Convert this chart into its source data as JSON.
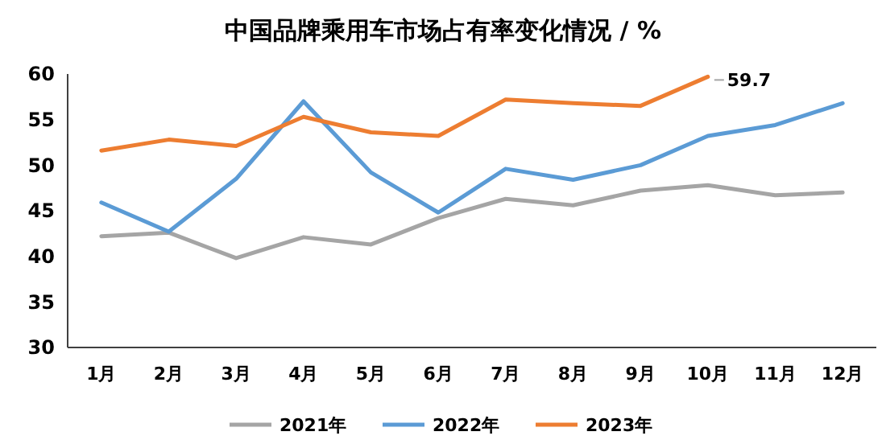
{
  "chart_data": {
    "type": "line",
    "title": "中国品牌乘用车市场占有率变化情况 / %",
    "categories": [
      "1月",
      "2月",
      "3月",
      "4月",
      "5月",
      "6月",
      "7月",
      "8月",
      "9月",
      "10月",
      "11月",
      "12月"
    ],
    "series": [
      {
        "name": "2021年",
        "color": "#a5a5a5",
        "values": [
          42.2,
          42.6,
          39.8,
          42.1,
          41.3,
          44.2,
          46.3,
          45.6,
          47.2,
          47.8,
          46.7,
          47.0
        ]
      },
      {
        "name": "2022年",
        "color": "#5b9bd5",
        "values": [
          45.9,
          42.7,
          48.5,
          57.0,
          49.2,
          44.8,
          49.6,
          48.4,
          50.0,
          53.2,
          54.4,
          56.8
        ]
      },
      {
        "name": "2023年",
        "color": "#ed7d31",
        "values": [
          51.6,
          52.8,
          52.1,
          55.3,
          53.6,
          53.2,
          57.2,
          56.8,
          56.5,
          59.7,
          null,
          null
        ]
      }
    ],
    "ylim": [
      30,
      60
    ],
    "yticks": [
      30,
      35,
      40,
      45,
      50,
      55,
      60
    ],
    "grid": false,
    "legend": "bottom",
    "marker": "none",
    "line_style": "solid",
    "annotations": [
      {
        "text": "59.7",
        "x": "10月",
        "y": 59.7
      }
    ]
  }
}
